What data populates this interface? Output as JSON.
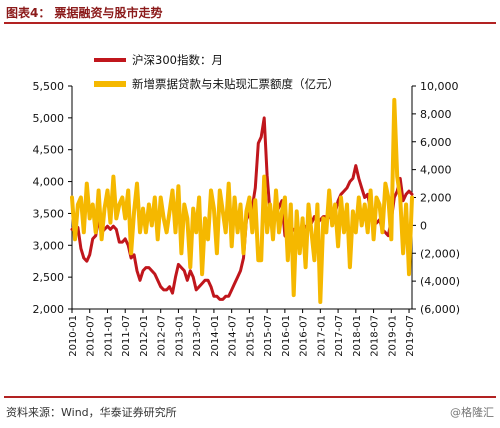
{
  "figure": {
    "title": "图表4： 票据融资与股市走势",
    "source": "资料来源：Wind，华泰证券研究所",
    "watermark": "@格隆汇"
  },
  "colors": {
    "index_line": "#c0161c",
    "bill_line": "#f5b800",
    "rule": "#b22222"
  },
  "chart_data": {
    "type": "line",
    "x": [
      "2010-01",
      "2010-02",
      "2010-03",
      "2010-04",
      "2010-05",
      "2010-06",
      "2010-07",
      "2010-08",
      "2010-09",
      "2010-10",
      "2010-11",
      "2010-12",
      "2011-01",
      "2011-02",
      "2011-03",
      "2011-04",
      "2011-05",
      "2011-06",
      "2011-07",
      "2011-08",
      "2011-09",
      "2011-10",
      "2011-11",
      "2011-12",
      "2012-01",
      "2012-02",
      "2012-03",
      "2012-04",
      "2012-05",
      "2012-06",
      "2012-07",
      "2012-08",
      "2012-09",
      "2012-10",
      "2012-11",
      "2012-12",
      "2013-01",
      "2013-02",
      "2013-03",
      "2013-04",
      "2013-05",
      "2013-06",
      "2013-07",
      "2013-08",
      "2013-09",
      "2013-10",
      "2013-11",
      "2013-12",
      "2014-01",
      "2014-02",
      "2014-03",
      "2014-04",
      "2014-05",
      "2014-06",
      "2014-07",
      "2014-08",
      "2014-09",
      "2014-10",
      "2014-11",
      "2014-12",
      "2015-01",
      "2015-02",
      "2015-03",
      "2015-04",
      "2015-05",
      "2015-06",
      "2015-07",
      "2015-08",
      "2015-09",
      "2015-10",
      "2015-11",
      "2015-12",
      "2016-01",
      "2016-02",
      "2016-03",
      "2016-04",
      "2016-05",
      "2016-06",
      "2016-07",
      "2016-08",
      "2016-09",
      "2016-10",
      "2016-11",
      "2016-12",
      "2017-01",
      "2017-02",
      "2017-03",
      "2017-04",
      "2017-05",
      "2017-06",
      "2017-07",
      "2017-08",
      "2017-09",
      "2017-10",
      "2017-11",
      "2017-12",
      "2018-01",
      "2018-02",
      "2018-03",
      "2018-04",
      "2018-05",
      "2018-06",
      "2018-07",
      "2018-08",
      "2018-09",
      "2018-10",
      "2018-11",
      "2018-12",
      "2019-01",
      "2019-02",
      "2019-03",
      "2019-04",
      "2019-05",
      "2019-06",
      "2019-07",
      "2019-08"
    ],
    "x_tick_labels": [
      "2010-01",
      "2010-07",
      "2011-01",
      "2011-07",
      "2012-01",
      "2012-07",
      "2013-01",
      "2013-07",
      "2014-01",
      "2014-07",
      "2015-01",
      "2015-07",
      "2016-01",
      "2016-07",
      "2017-01",
      "2017-07",
      "2018-01",
      "2018-07",
      "2019-01",
      "2019-07"
    ],
    "y_left": {
      "ticks": [
        2000,
        2500,
        3000,
        3500,
        4000,
        4500,
        5000,
        5500
      ],
      "tick_labels": [
        "2,000",
        "2,500",
        "3,000",
        "3,500",
        "4,000",
        "4,500",
        "5,000",
        "5,500"
      ],
      "range": [
        2000,
        5500
      ]
    },
    "y_right": {
      "ticks": [
        -6000,
        -4000,
        -2000,
        0,
        2000,
        4000,
        6000,
        8000,
        10000
      ],
      "tick_labels": [
        "(6,000)",
        "(4,000)",
        "(2,000)",
        "0",
        "2,000",
        "4,000",
        "6,000",
        "8,000",
        "10,000"
      ],
      "range": [
        -6000,
        10000
      ]
    },
    "series": [
      {
        "name": "沪深300指数：月",
        "axis": "left",
        "values": [
          3250,
          3300,
          3280,
          2950,
          2800,
          2750,
          2850,
          3100,
          3150,
          3400,
          3200,
          3250,
          3300,
          3250,
          3300,
          3250,
          3050,
          3050,
          3100,
          3000,
          2800,
          2850,
          2600,
          2450,
          2600,
          2650,
          2650,
          2600,
          2550,
          2450,
          2350,
          2300,
          2300,
          2350,
          2250,
          2500,
          2700,
          2650,
          2600,
          2450,
          2600,
          2500,
          2300,
          2350,
          2400,
          2450,
          2450,
          2350,
          2200,
          2200,
          2150,
          2150,
          2200,
          2200,
          2300,
          2400,
          2500,
          2600,
          2800,
          3400,
          3500,
          3600,
          3900,
          4600,
          4700,
          5000,
          4100,
          3500,
          3300,
          3500,
          3600,
          3700,
          3150,
          3100,
          3200,
          3250,
          3200,
          3200,
          3250,
          3300,
          3300,
          3350,
          3450,
          3350,
          3400,
          3450,
          3450,
          3450,
          3400,
          3500,
          3700,
          3800,
          3850,
          3900,
          4000,
          4050,
          4250,
          4050,
          3900,
          3750,
          3800,
          3550,
          3400,
          3350,
          3400,
          3250,
          3200,
          3150,
          3400,
          3750,
          3850,
          4050,
          3700,
          3800,
          3850,
          3800
        ]
      },
      {
        "name": "新增票据贷款与未贴现汇票额度（亿元）",
        "axis": "right",
        "values": [
          2000,
          -1000,
          1500,
          2000,
          -500,
          3000,
          500,
          1500,
          -500,
          2500,
          -1000,
          1200,
          2500,
          200,
          3500,
          500,
          1500,
          2000,
          500,
          2500,
          -2000,
          1000,
          3000,
          -500,
          1200,
          -500,
          1500,
          0,
          2000,
          -1000,
          2000,
          500,
          -500,
          1000,
          2500,
          -500,
          2800,
          -2000,
          1500,
          500,
          -3000,
          1200,
          -500,
          2000,
          -3500,
          500,
          -1000,
          2500,
          1200,
          -2000,
          2500,
          1000,
          -500,
          3000,
          -1500,
          2000,
          -500,
          1500,
          -2000,
          1000,
          2000,
          -500,
          1800,
          -2500,
          -2500,
          3500,
          -500,
          1500,
          -1000,
          2500,
          -500,
          1000,
          2000,
          -2500,
          1500,
          -5000,
          1000,
          -2000,
          500,
          -3000,
          1500,
          -500,
          -2500,
          1500,
          -5500,
          500,
          -500,
          2500,
          0,
          1500,
          -1500,
          2000,
          -500,
          1500,
          -3000,
          1000,
          -500,
          2000,
          0,
          1500,
          -500,
          2500,
          -1000,
          2000,
          1500,
          -500,
          3000,
          2000,
          -1000,
          9000,
          3500,
          2000,
          -2000,
          1500,
          -3500,
          2000
        ]
      }
    ],
    "legend": {
      "placement": "top-right"
    },
    "grid": false
  }
}
